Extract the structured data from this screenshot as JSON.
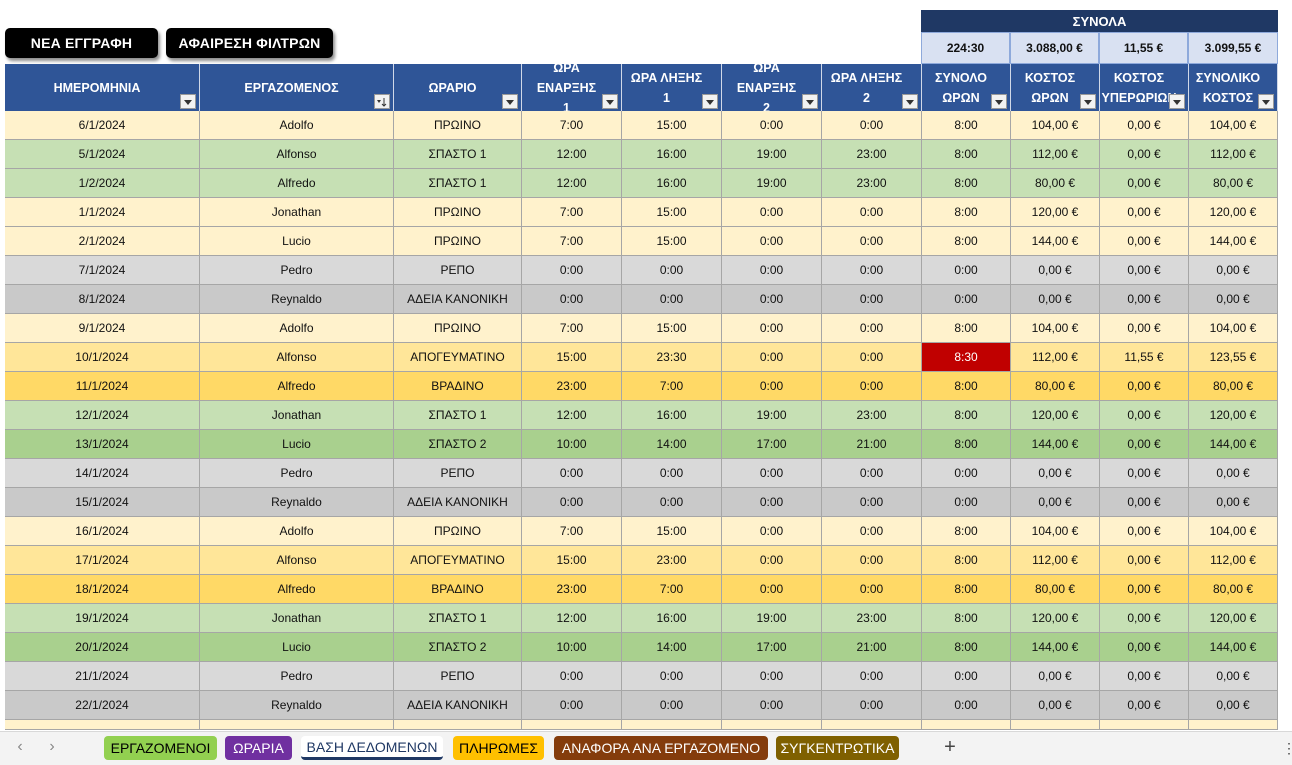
{
  "buttons": {
    "new_entry": "ΝΕΑ ΕΓΓΡΑΦΗ",
    "clear_filters": "ΑΦΑΙΡΕΣΗ ΦΙΛΤΡΩΝ"
  },
  "totals": {
    "title": "ΣΥΝΟΛΑ",
    "values": [
      "224:30",
      "3.088,00 €",
      "11,55 €",
      "3.099,55 €"
    ]
  },
  "columns": [
    "ΗΜΕΡΟΜΗΝΙΑ",
    "ΕΡΓΑΖΟΜΕΝΟΣ",
    "ΩΡΑΡΙΟ",
    "ΩΡΑ ΕΝΑΡΞΗΣ\n1",
    "ΩΡΑ ΛΗΞΗΣ 1",
    "ΩΡΑ ΕΝΑΡΞΗΣ\n2",
    "ΩΡΑ ΛΗΞΗΣ 2",
    "ΣΥΝΟΛΟ\nΩΡΩΝ",
    "ΚΟΣΤΟΣ\nΩΡΩΝ",
    "ΚΟΣΤΟΣ\nΥΠΕΡΩΡΙΩΝ",
    "ΣΥΝΟΛΙΚΟ\nΚΟΣΤΟΣ"
  ],
  "sorted_column_icon": "sort-filter-icon",
  "filter_icon": "filter-dropdown-icon",
  "colors": {
    "header_bg": "#2f5597",
    "totals_title_bg": "#1f3864",
    "totals_bg": "#d9e1f2",
    "overtime_highlight": "#c00000",
    "ΠΡΩΙΝΟ": "#fff2cc",
    "ΑΠΟΓΕΥΜΑΤΙΝΟ": "#ffe699",
    "ΒΡΑΔΙΝΟ": "#ffd966",
    "ΣΠΑΣΤΟ 1": "#c6e0b4",
    "ΣΠΑΣΤΟ 2": "#a9d08e",
    "ΡΕΠΟ": "#d9d9d9",
    "ΑΔΕΙΑ ΚΑΝΟΝΙΚΗ": "#c9c9c9"
  },
  "rows": [
    [
      "6/1/2024",
      "Adolfo",
      "ΠΡΩΙΝΟ",
      "7:00",
      "15:00",
      "0:00",
      "0:00",
      "8:00",
      "104,00 €",
      "0,00 €",
      "104,00 €"
    ],
    [
      "5/1/2024",
      "Alfonso",
      "ΣΠΑΣΤΟ 1",
      "12:00",
      "16:00",
      "19:00",
      "23:00",
      "8:00",
      "112,00 €",
      "0,00 €",
      "112,00 €"
    ],
    [
      "1/2/2024",
      "Alfredo",
      "ΣΠΑΣΤΟ 1",
      "12:00",
      "16:00",
      "19:00",
      "23:00",
      "8:00",
      "80,00 €",
      "0,00 €",
      "80,00 €"
    ],
    [
      "1/1/2024",
      "Jonathan",
      "ΠΡΩΙΝΟ",
      "7:00",
      "15:00",
      "0:00",
      "0:00",
      "8:00",
      "120,00 €",
      "0,00 €",
      "120,00 €"
    ],
    [
      "2/1/2024",
      "Lucio",
      "ΠΡΩΙΝΟ",
      "7:00",
      "15:00",
      "0:00",
      "0:00",
      "8:00",
      "144,00 €",
      "0,00 €",
      "144,00 €"
    ],
    [
      "7/1/2024",
      "Pedro",
      "ΡΕΠΟ",
      "0:00",
      "0:00",
      "0:00",
      "0:00",
      "0:00",
      "0,00 €",
      "0,00 €",
      "0,00 €"
    ],
    [
      "8/1/2024",
      "Reynaldo",
      "ΑΔΕΙΑ ΚΑΝΟΝΙΚΗ",
      "0:00",
      "0:00",
      "0:00",
      "0:00",
      "0:00",
      "0,00 €",
      "0,00 €",
      "0,00 €"
    ],
    [
      "9/1/2024",
      "Adolfo",
      "ΠΡΩΙΝΟ",
      "7:00",
      "15:00",
      "0:00",
      "0:00",
      "8:00",
      "104,00 €",
      "0,00 €",
      "104,00 €"
    ],
    [
      "10/1/2024",
      "Alfonso",
      "ΑΠΟΓΕΥΜΑΤΙΝΟ",
      "15:00",
      "23:30",
      "0:00",
      "0:00",
      "8:30",
      "112,00 €",
      "11,55 €",
      "123,55 €"
    ],
    [
      "11/1/2024",
      "Alfredo",
      "ΒΡΑΔΙΝΟ",
      "23:00",
      "7:00",
      "0:00",
      "0:00",
      "8:00",
      "80,00 €",
      "0,00 €",
      "80,00 €"
    ],
    [
      "12/1/2024",
      "Jonathan",
      "ΣΠΑΣΤΟ 1",
      "12:00",
      "16:00",
      "19:00",
      "23:00",
      "8:00",
      "120,00 €",
      "0,00 €",
      "120,00 €"
    ],
    [
      "13/1/2024",
      "Lucio",
      "ΣΠΑΣΤΟ 2",
      "10:00",
      "14:00",
      "17:00",
      "21:00",
      "8:00",
      "144,00 €",
      "0,00 €",
      "144,00 €"
    ],
    [
      "14/1/2024",
      "Pedro",
      "ΡΕΠΟ",
      "0:00",
      "0:00",
      "0:00",
      "0:00",
      "0:00",
      "0,00 €",
      "0,00 €",
      "0,00 €"
    ],
    [
      "15/1/2024",
      "Reynaldo",
      "ΑΔΕΙΑ ΚΑΝΟΝΙΚΗ",
      "0:00",
      "0:00",
      "0:00",
      "0:00",
      "0:00",
      "0,00 €",
      "0,00 €",
      "0,00 €"
    ],
    [
      "16/1/2024",
      "Adolfo",
      "ΠΡΩΙΝΟ",
      "7:00",
      "15:00",
      "0:00",
      "0:00",
      "8:00",
      "104,00 €",
      "0,00 €",
      "104,00 €"
    ],
    [
      "17/1/2024",
      "Alfonso",
      "ΑΠΟΓΕΥΜΑΤΙΝΟ",
      "15:00",
      "23:00",
      "0:00",
      "0:00",
      "8:00",
      "112,00 €",
      "0,00 €",
      "112,00 €"
    ],
    [
      "18/1/2024",
      "Alfredo",
      "ΒΡΑΔΙΝΟ",
      "23:00",
      "7:00",
      "0:00",
      "0:00",
      "8:00",
      "80,00 €",
      "0,00 €",
      "80,00 €"
    ],
    [
      "19/1/2024",
      "Jonathan",
      "ΣΠΑΣΤΟ 1",
      "12:00",
      "16:00",
      "19:00",
      "23:00",
      "8:00",
      "120,00 €",
      "0,00 €",
      "120,00 €"
    ],
    [
      "20/1/2024",
      "Lucio",
      "ΣΠΑΣΤΟ 2",
      "10:00",
      "14:00",
      "17:00",
      "21:00",
      "8:00",
      "144,00 €",
      "0,00 €",
      "144,00 €"
    ],
    [
      "21/1/2024",
      "Pedro",
      "ΡΕΠΟ",
      "0:00",
      "0:00",
      "0:00",
      "0:00",
      "0:00",
      "0,00 €",
      "0,00 €",
      "0,00 €"
    ],
    [
      "22/1/2024",
      "Reynaldo",
      "ΑΔΕΙΑ ΚΑΝΟΝΙΚΗ",
      "0:00",
      "0:00",
      "0:00",
      "0:00",
      "0:00",
      "0,00 €",
      "0,00 €",
      "0,00 €"
    ]
  ],
  "highlight": {
    "row": 8,
    "col": 7
  },
  "sheet_tabs": [
    {
      "label": "ΕΡΓΑΖΟΜΕΝΟΙ",
      "color": "#92d050",
      "text_color": "#000000"
    },
    {
      "label": "ΩΡΑΡΙΑ",
      "color": "#7030a0",
      "text_color": "#ffffff"
    },
    {
      "label": "ΒΑΣΗ ΔΕΔΟΜΕΝΩΝ",
      "color": "#ffffff",
      "text_color": "#1f3864",
      "active": true
    },
    {
      "label": "ΠΛΗΡΩΜΕΣ",
      "color": "#ffc000",
      "text_color": "#000000"
    },
    {
      "label": "ΑΝΑΦΟΡΑ ΑΝΑ ΕΡΓΑΖΟΜΕΝΟ",
      "color": "#843c0c",
      "text_color": "#ffffff"
    },
    {
      "label": "ΣΥΓΚΕΝΤΡΩΤΙΚΑ",
      "color": "#7f6000",
      "text_color": "#ffffff"
    }
  ],
  "tab_nav": {
    "prev_icon": "chevron-left-icon",
    "next_icon": "chevron-right-icon",
    "add_icon": "plus-icon",
    "more_icon": "more-options-icon"
  }
}
